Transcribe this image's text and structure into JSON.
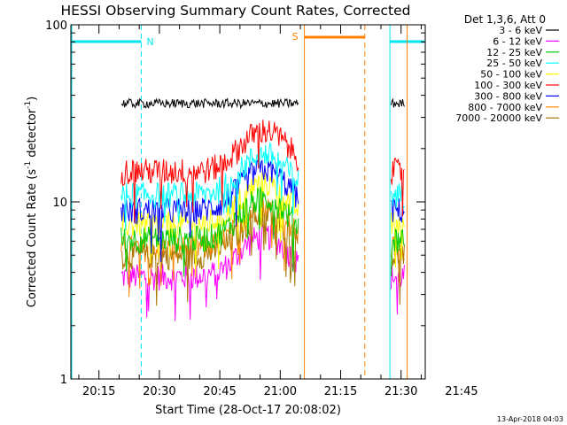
{
  "chart_data": {
    "type": "line",
    "title": "HESSI Observing Summary Count Rates, Corrected",
    "xlabel": "Start Time (28-Oct-17 20:08:02)",
    "ylabel_main": "Corrected Count Rate (s",
    "ylabel_sup1": "-1",
    "ylabel_mid": " detector",
    "ylabel_sup2": "-1",
    "ylabel_end": ")",
    "ylog": true,
    "ylim": [
      1,
      100
    ],
    "y_ticks": [
      1,
      10,
      100
    ],
    "y_tick_labels": [
      "1",
      "10",
      "100"
    ],
    "x_range_minutes": [
      8.03,
      96.0
    ],
    "x_ticks": [
      {
        "t": 15,
        "label": "20:15"
      },
      {
        "t": 30,
        "label": "20:30"
      },
      {
        "t": 45,
        "label": "20:45"
      },
      {
        "t": 60,
        "label": "21:00"
      },
      {
        "t": 75,
        "label": "21:15"
      },
      {
        "t": 90,
        "label": "21:30"
      },
      {
        "t": 105,
        "label": "21:45"
      }
    ],
    "legend_title": "Det 1,3,6, Att 0",
    "series": [
      {
        "name": "3 - 6 keV",
        "color": "#000000",
        "level": 36
      },
      {
        "name": "6 - 12 keV",
        "color": "#ff00ff",
        "level": 3.8
      },
      {
        "name": "12 - 25 keV",
        "color": "#00cc00",
        "level": 6.2
      },
      {
        "name": "25 - 50 keV",
        "color": "#00ffff",
        "level": 11
      },
      {
        "name": "50 - 100 keV",
        "color": "#ffff00",
        "level": 7.5
      },
      {
        "name": "100 - 300 keV",
        "color": "#ff0000",
        "level": 15
      },
      {
        "name": "300 - 800 keV",
        "color": "#0000ff",
        "level": 9
      },
      {
        "name": "800 - 7000 keV",
        "color": "#ff8800",
        "level": 5.5
      },
      {
        "name": "7000 - 20000 keV",
        "color": "#aa7700",
        "level": 5
      }
    ],
    "segments": [
      {
        "start": 20.5,
        "end": 64.5,
        "name": "observation-segment-1"
      },
      {
        "start": 87.5,
        "end": 91.0,
        "name": "observation-segment-2"
      }
    ],
    "peak_time": 56,
    "night_markers": [
      {
        "label": "N",
        "bar_start": 8.03,
        "bar_end": 25.5,
        "line_start": 8.03,
        "line_end": 25.5,
        "color": "#00e5ee"
      },
      {
        "label": "",
        "bar_start": 87.0,
        "bar_end": 105.5,
        "line_start": 87.0,
        "line_end": 105.5,
        "color": "#00e5ee"
      }
    ],
    "saa_marker": {
      "label": "S",
      "start": 66.0,
      "end": 81.0,
      "line_start": 66.0,
      "line_end": 91.5,
      "color": "#ff8000"
    }
  },
  "footer": {
    "date": "13-Apr-2018 04:03"
  }
}
